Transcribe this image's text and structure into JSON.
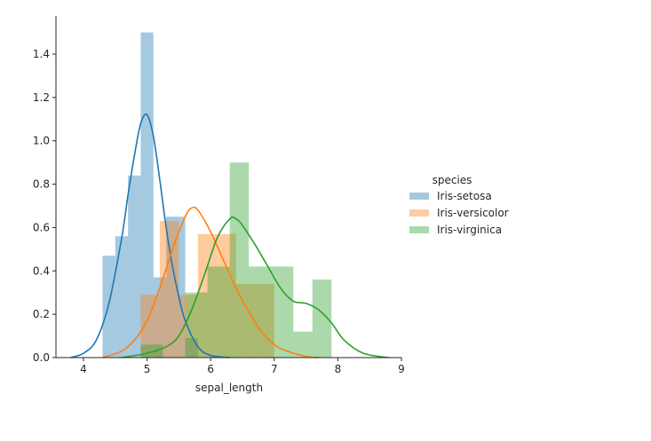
{
  "chart_data": {
    "type": "histogram",
    "xlabel": "sepal_length",
    "ylabel": "",
    "xlim": [
      3.7,
      9.0
    ],
    "ylim": [
      0.0,
      1.55
    ],
    "xticks": [
      4,
      5,
      6,
      7,
      8,
      9
    ],
    "yticks": [
      0.0,
      0.2,
      0.4,
      0.6,
      0.8,
      1.0,
      1.2,
      1.4
    ],
    "ytick_labels": [
      "0.0",
      "0.2",
      "0.4",
      "0.6",
      "0.8",
      "1.0",
      "1.2",
      "1.4"
    ],
    "grid": false,
    "legend": {
      "title": "species",
      "placement": "right"
    },
    "series": [
      {
        "name": "Iris-setosa",
        "color": "#1f77b4",
        "bins": [
          {
            "x0": 4.3,
            "x1": 4.5,
            "density": 0.47
          },
          {
            "x0": 4.5,
            "x1": 4.7,
            "density": 0.56
          },
          {
            "x0": 4.7,
            "x1": 4.9,
            "density": 0.84
          },
          {
            "x0": 4.9,
            "x1": 5.1,
            "density": 1.5
          },
          {
            "x0": 5.1,
            "x1": 5.3,
            "density": 0.37
          },
          {
            "x0": 5.3,
            "x1": 5.6,
            "density": 0.65
          },
          {
            "x0": 5.6,
            "x1": 5.8,
            "density": 0.09
          }
        ],
        "kde": {
          "x": [
            3.8,
            4.0,
            4.2,
            4.4,
            4.6,
            4.7,
            4.8,
            4.9,
            5.0,
            5.1,
            5.2,
            5.3,
            5.4,
            5.5,
            5.6,
            5.8,
            6.0,
            6.3
          ],
          "y": [
            0.0,
            0.02,
            0.08,
            0.25,
            0.55,
            0.75,
            0.93,
            1.08,
            1.12,
            1.02,
            0.82,
            0.6,
            0.42,
            0.28,
            0.17,
            0.05,
            0.01,
            0.0
          ]
        }
      },
      {
        "name": "Iris-versicolor",
        "color": "#ff7f0e",
        "bins": [
          {
            "x0": 4.9,
            "x1": 5.2,
            "density": 0.29
          },
          {
            "x0": 5.2,
            "x1": 5.5,
            "density": 0.63
          },
          {
            "x0": 5.5,
            "x1": 5.8,
            "density": 0.29
          },
          {
            "x0": 5.8,
            "x1": 6.1,
            "density": 0.57
          },
          {
            "x0": 6.1,
            "x1": 6.4,
            "density": 0.57
          },
          {
            "x0": 6.4,
            "x1": 6.7,
            "density": 0.34
          },
          {
            "x0": 6.7,
            "x1": 7.0,
            "density": 0.34
          }
        ],
        "kde": {
          "x": [
            4.3,
            4.6,
            4.8,
            5.0,
            5.2,
            5.4,
            5.6,
            5.7,
            5.8,
            6.0,
            6.2,
            6.4,
            6.6,
            6.8,
            7.0,
            7.2,
            7.5,
            7.7
          ],
          "y": [
            0.0,
            0.03,
            0.08,
            0.17,
            0.32,
            0.5,
            0.65,
            0.69,
            0.68,
            0.58,
            0.45,
            0.32,
            0.21,
            0.12,
            0.06,
            0.03,
            0.005,
            0.0
          ]
        }
      },
      {
        "name": "Iris-virginica",
        "color": "#2ca02c",
        "bins": [
          {
            "x0": 4.9,
            "x1": 5.25,
            "density": 0.06
          },
          {
            "x0": 5.25,
            "x1": 5.6,
            "density": 0.0
          },
          {
            "x0": 5.6,
            "x1": 5.95,
            "density": 0.3
          },
          {
            "x0": 5.95,
            "x1": 6.3,
            "density": 0.42
          },
          {
            "x0": 6.3,
            "x1": 6.6,
            "density": 0.9
          },
          {
            "x0": 6.6,
            "x1": 6.95,
            "density": 0.42
          },
          {
            "x0": 6.95,
            "x1": 7.3,
            "density": 0.42
          },
          {
            "x0": 7.3,
            "x1": 7.6,
            "density": 0.12
          },
          {
            "x0": 7.6,
            "x1": 7.9,
            "density": 0.36
          }
        ],
        "kde": {
          "x": [
            4.6,
            5.0,
            5.3,
            5.5,
            5.7,
            5.9,
            6.1,
            6.3,
            6.4,
            6.5,
            6.7,
            6.9,
            7.1,
            7.3,
            7.5,
            7.7,
            7.9,
            8.1,
            8.4,
            8.8
          ],
          "y": [
            0.0,
            0.02,
            0.05,
            0.1,
            0.22,
            0.38,
            0.55,
            0.64,
            0.64,
            0.61,
            0.52,
            0.42,
            0.32,
            0.26,
            0.25,
            0.22,
            0.16,
            0.08,
            0.02,
            0.0
          ]
        }
      }
    ]
  }
}
